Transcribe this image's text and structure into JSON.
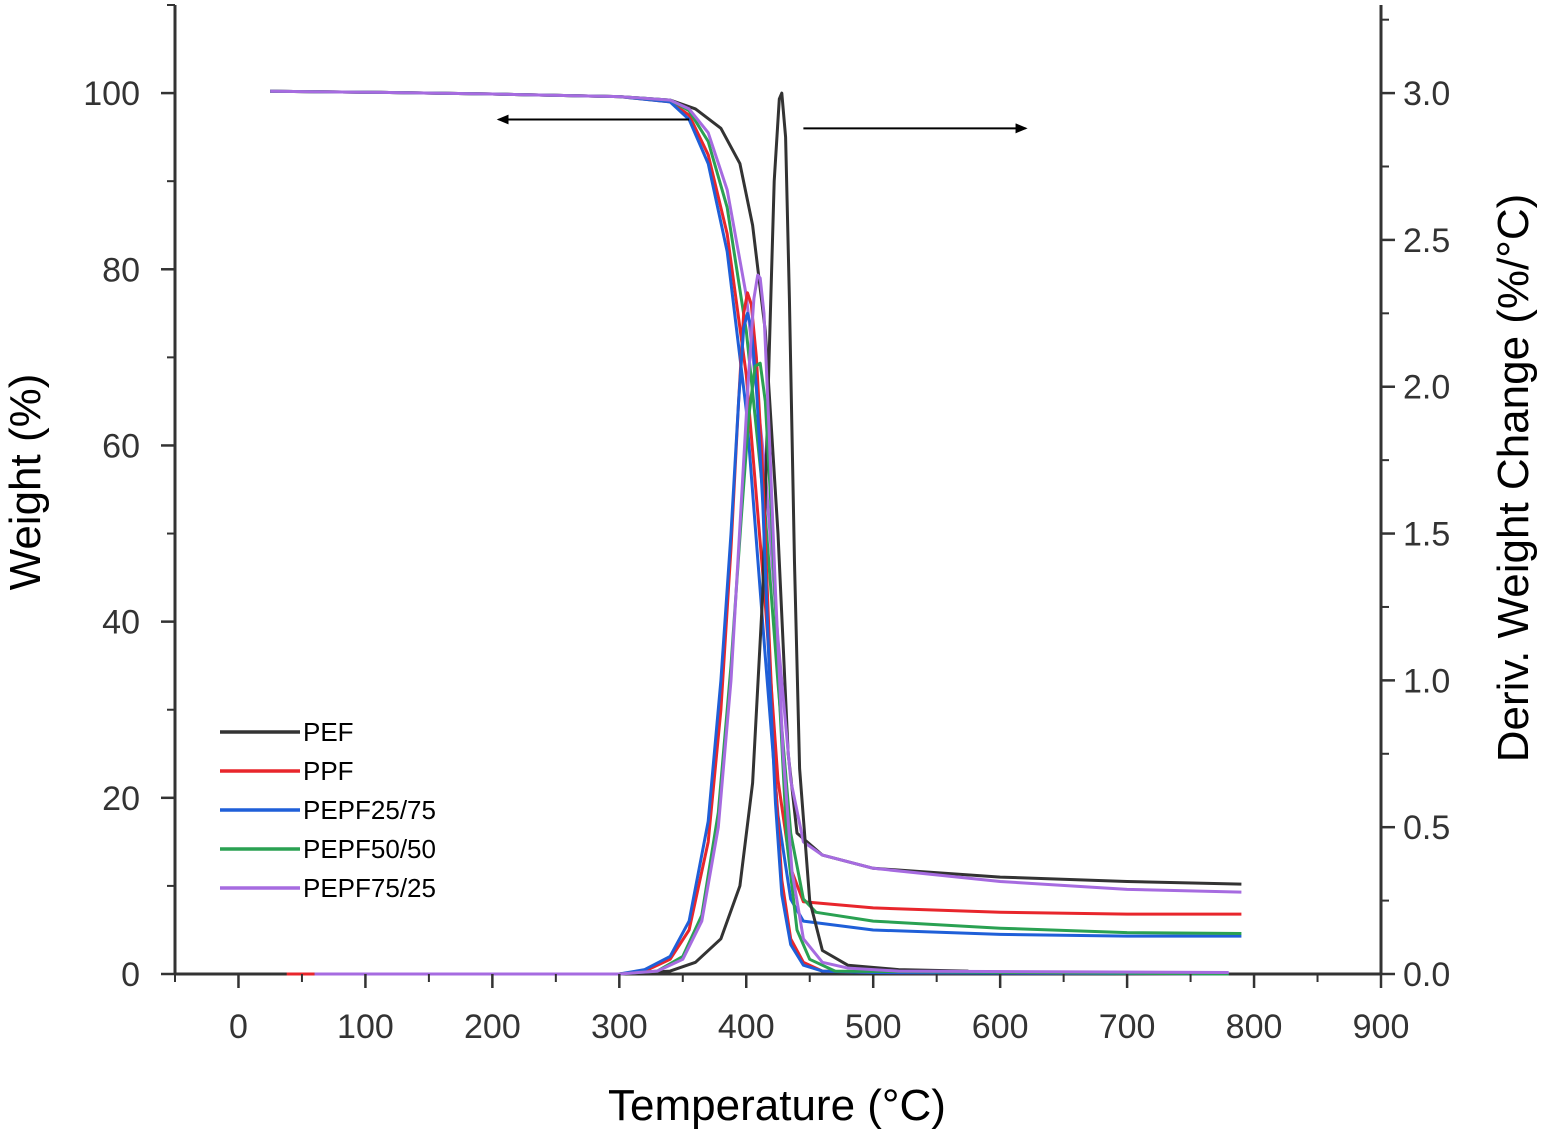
{
  "chart_data": {
    "type": "line",
    "title": "",
    "xlabel": "Temperature (°C)",
    "ylabel_left": "Weight (%)",
    "ylabel_right": "Deriv. Weight Change (%/°C)",
    "xlim": [
      -50,
      900
    ],
    "ylim_left": [
      0,
      110
    ],
    "ylim_right": [
      0,
      3.3
    ],
    "x_ticks": [
      0,
      100,
      200,
      300,
      400,
      500,
      600,
      700,
      800,
      900
    ],
    "y_left_ticks": [
      0,
      20,
      40,
      60,
      80,
      100
    ],
    "y_right_ticks": [
      0.0,
      0.5,
      1.0,
      1.5,
      2.0,
      2.5,
      3.0
    ],
    "y_right_tick_labels": [
      "0.0",
      "0.5",
      "1.0",
      "1.5",
      "2.0",
      "2.5",
      "3.0"
    ],
    "grid": false,
    "legend_position": "bottom-left",
    "colors": {
      "PEF": "#333333",
      "PPF": "#e8262c",
      "PEPF25/75": "#1f5fd8",
      "PEPF50/50": "#2aa152",
      "PEPF75/25": "#a66be0"
    },
    "series": [
      {
        "name": "PEF",
        "axis": "left",
        "x": [
          25,
          100,
          200,
          300,
          340,
          360,
          380,
          395,
          405,
          415,
          425,
          433,
          440,
          460,
          500,
          600,
          700,
          790
        ],
        "y": [
          100.2,
          100.1,
          99.9,
          99.6,
          99.2,
          98.2,
          96.0,
          92.0,
          85.0,
          73.0,
          50.0,
          25.0,
          16.0,
          13.5,
          12.0,
          11.0,
          10.5,
          10.2
        ]
      },
      {
        "name": "PPF",
        "axis": "left",
        "x": [
          25,
          100,
          200,
          300,
          340,
          355,
          370,
          385,
          400,
          415,
          425,
          435,
          445,
          500,
          600,
          700,
          790
        ],
        "y": [
          100.2,
          100.1,
          99.9,
          99.6,
          99.0,
          97.5,
          93.0,
          84.0,
          68.0,
          42.0,
          22.0,
          12.0,
          8.2,
          7.5,
          7.0,
          6.8,
          6.8
        ]
      },
      {
        "name": "PEPF25/75",
        "axis": "left",
        "x": [
          25,
          100,
          200,
          300,
          340,
          355,
          370,
          385,
          400,
          415,
          425,
          435,
          445,
          500,
          600,
          700,
          790
        ],
        "y": [
          100.2,
          100.1,
          99.9,
          99.6,
          99.0,
          97.0,
          92.0,
          82.0,
          64.0,
          36.0,
          18.0,
          8.5,
          6.0,
          5.0,
          4.5,
          4.3,
          4.3
        ]
      },
      {
        "name": "PEPF50/50",
        "axis": "left",
        "x": [
          25,
          100,
          200,
          300,
          340,
          355,
          370,
          385,
          400,
          415,
          425,
          435,
          445,
          455,
          500,
          600,
          700,
          790
        ],
        "y": [
          100.2,
          100.1,
          99.9,
          99.6,
          99.2,
          98.0,
          94.5,
          87.0,
          73.0,
          52.0,
          33.0,
          16.0,
          8.5,
          7.0,
          6.0,
          5.2,
          4.7,
          4.6
        ]
      },
      {
        "name": "PEPF75/25",
        "axis": "left",
        "x": [
          25,
          100,
          200,
          300,
          340,
          355,
          370,
          385,
          400,
          415,
          425,
          435,
          445,
          460,
          500,
          600,
          700,
          790
        ],
        "y": [
          100.2,
          100.1,
          99.9,
          99.6,
          99.2,
          98.2,
          95.5,
          89.0,
          77.0,
          57.0,
          38.0,
          22.0,
          15.0,
          13.5,
          12.0,
          10.5,
          9.6,
          9.3
        ]
      },
      {
        "name": "PEF",
        "axis": "right",
        "x": [
          25,
          300,
          340,
          360,
          380,
          395,
          405,
          413,
          418,
          422,
          426,
          428,
          431,
          434,
          438,
          442,
          450,
          460,
          480,
          520,
          575
        ],
        "y": [
          0.0,
          0.0,
          0.01,
          0.04,
          0.12,
          0.3,
          0.65,
          1.3,
          2.1,
          2.7,
          2.98,
          3.0,
          2.85,
          2.3,
          1.4,
          0.7,
          0.25,
          0.08,
          0.03,
          0.015,
          0.01
        ]
      },
      {
        "name": "PPF",
        "axis": "right",
        "x": [
          38,
          300,
          320,
          340,
          355,
          370,
          380,
          388,
          394,
          398,
          401,
          404,
          408,
          413,
          418,
          423,
          428,
          435,
          445,
          460,
          500,
          770
        ],
        "y": [
          0.0,
          0.0,
          0.01,
          0.05,
          0.15,
          0.45,
          0.9,
          1.45,
          1.95,
          2.25,
          2.32,
          2.28,
          2.1,
          1.7,
          1.15,
          0.65,
          0.32,
          0.12,
          0.04,
          0.01,
          0.005,
          0.0
        ]
      },
      {
        "name": "PEPF25/75",
        "axis": "right",
        "x": [
          60,
          300,
          320,
          340,
          355,
          370,
          380,
          388,
          394,
          398,
          401,
          404,
          408,
          413,
          418,
          423,
          428,
          435,
          445,
          460,
          500,
          780
        ],
        "y": [
          0.0,
          0.0,
          0.015,
          0.06,
          0.18,
          0.52,
          1.0,
          1.5,
          1.95,
          2.2,
          2.25,
          2.2,
          2.0,
          1.6,
          1.05,
          0.58,
          0.27,
          0.1,
          0.03,
          0.01,
          0.005,
          0.0
        ]
      },
      {
        "name": "PEPF50/50",
        "axis": "right",
        "x": [
          60,
          300,
          330,
          350,
          365,
          378,
          388,
          396,
          402,
          407,
          411,
          415,
          420,
          426,
          432,
          440,
          450,
          470,
          780
        ],
        "y": [
          0.0,
          0.0,
          0.01,
          0.06,
          0.2,
          0.55,
          1.05,
          1.55,
          1.9,
          2.07,
          2.08,
          1.95,
          1.55,
          0.95,
          0.45,
          0.15,
          0.05,
          0.01,
          0.0
        ]
      },
      {
        "name": "PEPF75/25",
        "axis": "right",
        "x": [
          60,
          300,
          330,
          350,
          365,
          378,
          388,
          396,
          402,
          406,
          409,
          411,
          414,
          418,
          423,
          429,
          436,
          445,
          460,
          480,
          520,
          780
        ],
        "y": [
          0.0,
          0.0,
          0.01,
          0.05,
          0.18,
          0.5,
          1.0,
          1.6,
          2.05,
          2.3,
          2.38,
          2.37,
          2.25,
          1.85,
          1.3,
          0.75,
          0.35,
          0.12,
          0.04,
          0.02,
          0.01,
          0.005
        ]
      }
    ],
    "legend": [
      "PEF",
      "PPF",
      "PEPF25/75",
      "PEPF50/50",
      "PEPF75/25"
    ],
    "annotations": [
      {
        "type": "arrow",
        "direction": "left",
        "axis": "left",
        "x_from": 355,
        "x_to": 205,
        "y": 97
      },
      {
        "type": "arrow",
        "direction": "right",
        "axis": "left",
        "x_from": 445,
        "x_to": 620,
        "y": 96
      }
    ]
  }
}
